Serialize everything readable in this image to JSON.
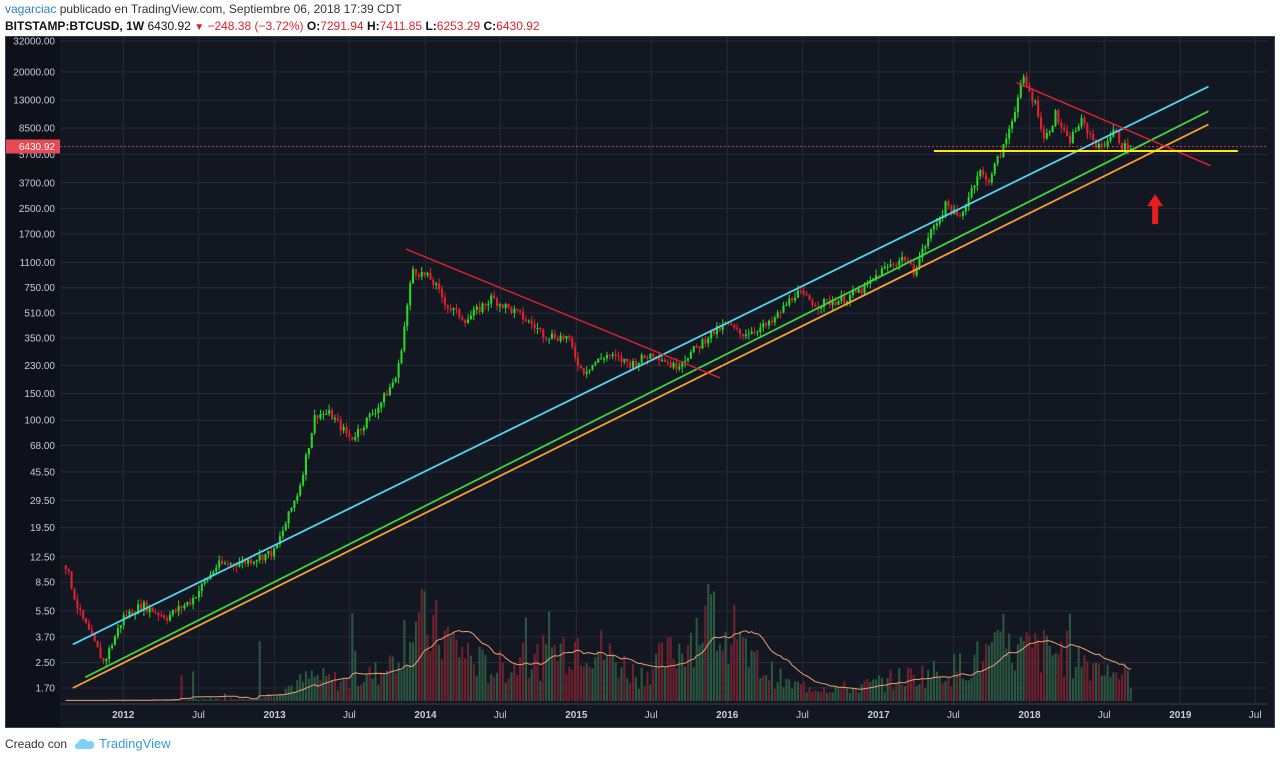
{
  "header": {
    "author": "vagarciac",
    "published": " publicado en TradingView.com, Septiembre 06, 2018 17:39 CDT",
    "symbol": "BITSTAMP:BTCUSD, 1W",
    "last": "6430.92",
    "change": "−248.38 (−3.72%)",
    "o_label": "O:",
    "o": "7291.94",
    "h_label": "H:",
    "h": "7411.85",
    "l_label": "L:",
    "l": "6253.29",
    "c_label": "C:",
    "c": "6430.92"
  },
  "footer": {
    "created_with": "Creado con",
    "brand": "TradingView"
  },
  "colors": {
    "background": "#131722",
    "grid": "#262b38",
    "up": "#26d926",
    "down": "#e0222e",
    "vol_up": "#2e5e45",
    "vol_down": "#7a2430",
    "vol_ma": "#e8a071",
    "cyan_line": "#4fd6f2",
    "green_line": "#3ed43e",
    "orange_line": "#f5a030",
    "yellow_line": "#ffe815",
    "red_trend": "#e0222e",
    "price_tag": "#e84a55"
  },
  "chart_data": {
    "type": "candlestick",
    "scale": "log",
    "price_tag": "6430.92",
    "y_ticks": [
      "32000.00",
      "20000.00",
      "13000.00",
      "8500.00",
      "5700.00",
      "3700.00",
      "2500.00",
      "1700.00",
      "1100.00",
      "750.00",
      "510.00",
      "350.00",
      "230.00",
      "150.00",
      "100.00",
      "68.00",
      "45.50",
      "29.50",
      "19.50",
      "12.50",
      "8.50",
      "5.50",
      "3.70",
      "2.50",
      "1.70"
    ],
    "x_ticks": [
      "2012",
      "Jul",
      "2013",
      "Jul",
      "2014",
      "Jul",
      "2015",
      "Jul",
      "2016",
      "Jul",
      "2017",
      "Jul",
      "2018",
      "Jul",
      "2019",
      "Jul"
    ],
    "x_range": [
      "2011-08",
      "2019-08"
    ],
    "price_anchors": [
      [
        "2011-08-15",
        11.0
      ],
      [
        "2011-09-15",
        5.5
      ],
      [
        "2011-11-15",
        2.5
      ],
      [
        "2012-01-01",
        5.0
      ],
      [
        "2012-02-15",
        6.0
      ],
      [
        "2012-04-15",
        5.0
      ],
      [
        "2012-06-15",
        6.5
      ],
      [
        "2012-08-15",
        11.0
      ],
      [
        "2012-10-15",
        11.5
      ],
      [
        "2013-01-01",
        13.5
      ],
      [
        "2013-03-01",
        35.0
      ],
      [
        "2013-04-10",
        110.0
      ],
      [
        "2013-05-15",
        110.0
      ],
      [
        "2013-07-05",
        75.0
      ],
      [
        "2013-09-15",
        130.0
      ],
      [
        "2013-10-25",
        200.0
      ],
      [
        "2013-12-01",
        1000.0
      ],
      [
        "2014-01-15",
        850.0
      ],
      [
        "2014-02-25",
        560.0
      ],
      [
        "2014-04-10",
        460.0
      ],
      [
        "2014-06-10",
        640.0
      ],
      [
        "2014-08-15",
        500.0
      ],
      [
        "2014-10-15",
        370.0
      ],
      [
        "2014-12-10",
        350.0
      ],
      [
        "2015-01-15",
        210.0
      ],
      [
        "2015-03-15",
        270.0
      ],
      [
        "2015-05-15",
        235.0
      ],
      [
        "2015-07-10",
        280.0
      ],
      [
        "2015-08-25",
        225.0
      ],
      [
        "2015-10-25",
        310.0
      ],
      [
        "2015-11-15",
        360.0
      ],
      [
        "2016-01-01",
        430.0
      ],
      [
        "2016-02-01",
        370.0
      ],
      [
        "2016-04-15",
        430.0
      ],
      [
        "2016-06-15",
        700.0
      ],
      [
        "2016-08-05",
        580.0
      ],
      [
        "2016-10-15",
        640.0
      ],
      [
        "2016-12-01",
        750.0
      ],
      [
        "2017-01-05",
        960.0
      ],
      [
        "2017-03-05",
        1200.0
      ],
      [
        "2017-03-25",
        950.0
      ],
      [
        "2017-05-10",
        1800.0
      ],
      [
        "2017-06-15",
        2700.0
      ],
      [
        "2017-07-15",
        2100.0
      ],
      [
        "2017-09-01",
        4500.0
      ],
      [
        "2017-09-20",
        3700.0
      ],
      [
        "2017-11-01",
        6500.0
      ],
      [
        "2017-12-17",
        18000.0
      ],
      [
        "2018-01-20",
        11500.0
      ],
      [
        "2018-02-06",
        7000.0
      ],
      [
        "2018-03-05",
        10500.0
      ],
      [
        "2018-04-05",
        6800.0
      ],
      [
        "2018-05-05",
        9500.0
      ],
      [
        "2018-06-20",
        6200.0
      ],
      [
        "2018-07-25",
        8200.0
      ],
      [
        "2018-08-15",
        6400.0
      ],
      [
        "2018-09-06",
        6430.92
      ]
    ],
    "trendlines": [
      {
        "id": "cyan",
        "p1": [
          "2011-09-01",
          3.3
        ],
        "p2": [
          "2019-03-10",
          16000.0
        ]
      },
      {
        "id": "green",
        "p1": [
          "2011-10-01",
          2.0
        ],
        "p2": [
          "2019-03-10",
          11000.0
        ]
      },
      {
        "id": "orange",
        "p1": [
          "2011-09-01",
          1.7
        ],
        "p2": [
          "2019-03-10",
          9000.0
        ]
      },
      {
        "id": "red1",
        "p1": [
          "2013-11-15",
          1350.0
        ],
        "p2": [
          "2015-12-15",
          190.0
        ]
      },
      {
        "id": "red2",
        "p1": [
          "2017-12-01",
          17000.0
        ],
        "p2": [
          "2019-03-15",
          4800.0
        ]
      },
      {
        "id": "yellow",
        "p1": [
          "2017-05-15",
          6000.0
        ],
        "p2": [
          "2019-05-20",
          6000.0
        ]
      }
    ],
    "volume_anchors": [
      [
        "2011-08-01",
        0.0
      ],
      [
        "2011-12-01",
        0.005
      ],
      [
        "2012-06-01",
        0.01
      ],
      [
        "2012-12-01",
        0.02
      ],
      [
        "2013-04-01",
        0.15
      ],
      [
        "2013-07-01",
        0.12
      ],
      [
        "2013-10-01",
        0.2
      ],
      [
        "2013-12-01",
        0.52
      ],
      [
        "2014-03-01",
        0.38
      ],
      [
        "2014-06-01",
        0.2
      ],
      [
        "2014-10-01",
        0.26
      ],
      [
        "2015-01-15",
        0.4
      ],
      [
        "2015-06-01",
        0.16
      ],
      [
        "2015-09-01",
        0.32
      ],
      [
        "2015-11-15",
        0.55
      ],
      [
        "2016-02-01",
        0.3
      ],
      [
        "2016-06-01",
        0.1
      ],
      [
        "2016-11-01",
        0.08
      ],
      [
        "2017-03-01",
        0.15
      ],
      [
        "2017-07-01",
        0.2
      ],
      [
        "2017-10-01",
        0.3
      ],
      [
        "2018-01-01",
        0.32
      ],
      [
        "2018-04-01",
        0.3
      ],
      [
        "2018-09-06",
        0.15
      ]
    ],
    "arrow": [
      "2018-11-01",
      2300.0
    ]
  }
}
